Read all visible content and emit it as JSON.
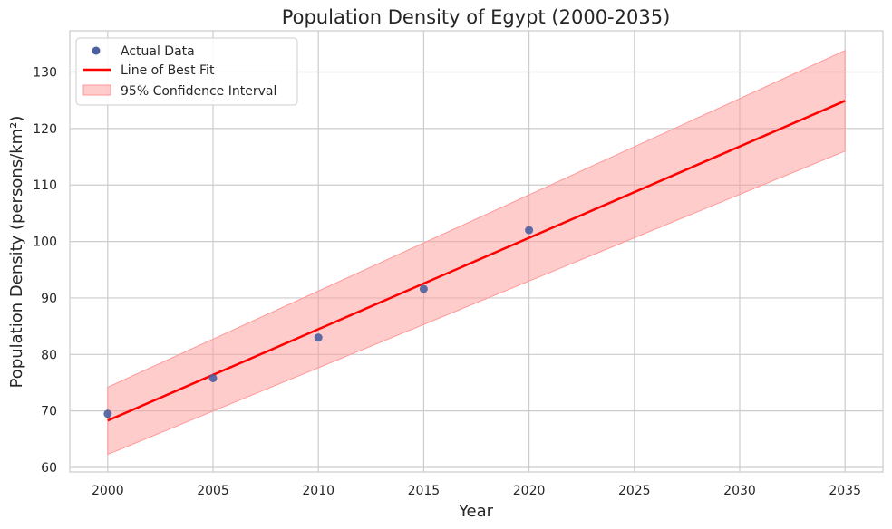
{
  "chart_data": {
    "type": "scatter",
    "title": "Population Density of Egypt (2000-2035)",
    "xlabel": "Year",
    "ylabel": "Population Density (persons/km²)",
    "xlim": [
      1998.2,
      2036.8
    ],
    "ylim": [
      59.2,
      137.3
    ],
    "xticks": [
      2000,
      2005,
      2010,
      2015,
      2020,
      2025,
      2030,
      2035
    ],
    "yticks": [
      60,
      70,
      80,
      90,
      100,
      110,
      120,
      130
    ],
    "grid": true,
    "legend_position": "top-left",
    "series": [
      {
        "name": "Actual Data",
        "kind": "scatter",
        "color": "#4c5f9e",
        "x": [
          2000,
          2005,
          2010,
          2015,
          2020
        ],
        "y": [
          69.5,
          75.8,
          83.0,
          91.6,
          102.0
        ]
      },
      {
        "name": "Line of Best Fit",
        "kind": "line",
        "color": "#ff0000",
        "x": [
          2000,
          2035
        ],
        "y": [
          68.3,
          124.9
        ]
      },
      {
        "name": "95% Confidence Interval",
        "kind": "band",
        "color": "#ff9999",
        "x": [
          2000,
          2035
        ],
        "lower": [
          62.3,
          116.0
        ],
        "upper": [
          74.2,
          133.8
        ]
      }
    ]
  }
}
